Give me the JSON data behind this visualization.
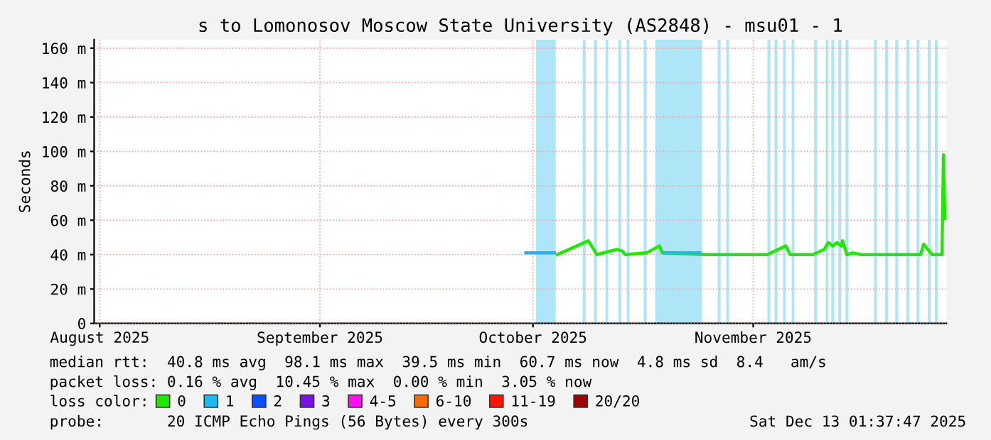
{
  "chart_data": {
    "type": "line",
    "title": "s to Lomonosov Moscow State University (AS2848) - msu01 - 1",
    "ylabel": "Seconds",
    "xlim": [
      "2025-07-31T05:00",
      "2025-11-28T05:00"
    ],
    "xticks": [
      {
        "value": "2025-08-01",
        "label": "August 2025"
      },
      {
        "value": "2025-09-01",
        "label": "September 2025"
      },
      {
        "value": "2025-10-01",
        "label": "October 2025"
      },
      {
        "value": "2025-11-01",
        "label": "November 2025"
      }
    ],
    "ylim": [
      0,
      165
    ],
    "yticks": [
      0,
      {
        "value": 20,
        "label": "20 m"
      },
      {
        "value": 40,
        "label": "40 m"
      },
      {
        "value": 60,
        "label": "60 m"
      },
      {
        "value": 80,
        "label": "80 m"
      },
      {
        "value": 100,
        "label": "100 m"
      },
      {
        "value": 120,
        "label": "120 m"
      },
      {
        "value": 140,
        "label": "140 m"
      },
      {
        "value": 160,
        "label": "160 m"
      }
    ],
    "grid": true,
    "legend": "bottom",
    "legend_title": "loss color:",
    "series": [
      {
        "name": "0",
        "color": "#22e800",
        "x": [
          "2025-10-04T10:00",
          "2025-10-08T19:00",
          "2025-10-10",
          "2025-10-12T19:00",
          "2025-10-13T14:00",
          "2025-10-14",
          "2025-10-17",
          "2025-10-18T19:00",
          "2025-10-19T05:00",
          "2025-10-25T10:00",
          "2025-11-03",
          "2025-11-04",
          "2025-11-05T14:00",
          "2025-11-06T05:00",
          "2025-11-09T10:00",
          "2025-11-11",
          "2025-11-11T14:00",
          "2025-11-12T05:00",
          "2025-11-12T19:00",
          "2025-11-13T10:00",
          "2025-11-13T14:00",
          "2025-11-14T05:00",
          "2025-11-15",
          "2025-11-16T05:00",
          "2025-11-24T14:00",
          "2025-11-25",
          "2025-11-25T19:00",
          "2025-11-26T05:00",
          "2025-11-27T14:00",
          "2025-11-27T19:00",
          "2025-11-28"
        ],
        "values": [
          40,
          48,
          40,
          43,
          42,
          40,
          41,
          45,
          41,
          40,
          40,
          42,
          45,
          40,
          40,
          43,
          47,
          45,
          47,
          45,
          48,
          40,
          41,
          40,
          40,
          46,
          42,
          40,
          40,
          98,
          61
        ]
      },
      {
        "name": "1",
        "color": "#1eb8f0",
        "x": [
          "2025-09-30",
          "2025-10-04",
          "2025-10-11",
          "2025-10-19T12:00",
          "2025-10-24T12:00"
        ],
        "values": [
          41,
          41,
          null,
          41,
          41
        ]
      },
      {
        "name": "2",
        "color": "#0a50ff"
      },
      {
        "name": "3",
        "color": "#7a10e8"
      },
      {
        "name": "4-5",
        "color": "#ff10f0"
      },
      {
        "name": "6-10",
        "color": "#ff6a00"
      },
      {
        "name": "11-19",
        "color": "#ff1400"
      },
      {
        "name": "20/20",
        "color": "#a00000"
      }
    ],
    "bands": [
      {
        "axis": "x",
        "from": "2025-10-01T10:00",
        "to": "2025-10-04T05:00",
        "color": "#aee6f8"
      },
      {
        "axis": "x",
        "from": "2025-10-18T05:00",
        "to": "2025-10-24T19:00",
        "color": "#aee6f8"
      },
      {
        "axis": "x",
        "from": "2025-10-08",
        "to": "2025-10-08T10:00",
        "color": "#aee6f8"
      },
      {
        "axis": "x",
        "from": "2025-10-09T14:00",
        "to": "2025-10-10",
        "color": "#aee6f8"
      },
      {
        "axis": "x",
        "from": "2025-10-11T05:00",
        "to": "2025-10-11T14:00",
        "color": "#aee6f8"
      },
      {
        "axis": "x",
        "from": "2025-10-13",
        "to": "2025-10-13T10:00",
        "color": "#aee6f8"
      },
      {
        "axis": "x",
        "from": "2025-10-14T05:00",
        "to": "2025-10-14T14:00",
        "color": "#aee6f8"
      },
      {
        "axis": "x",
        "from": "2025-10-16T14:00",
        "to": "2025-10-17",
        "color": "#aee6f8"
      },
      {
        "axis": "x",
        "from": "2025-10-27",
        "to": "2025-10-27T10:00",
        "color": "#aee6f8"
      },
      {
        "axis": "x",
        "from": "2025-10-28T05:00",
        "to": "2025-10-28T14:00",
        "color": "#aee6f8"
      },
      {
        "axis": "x",
        "from": "2025-11-03",
        "to": "2025-11-03T10:00",
        "color": "#aee6f8"
      },
      {
        "axis": "x",
        "from": "2025-11-04",
        "to": "2025-11-04T10:00",
        "color": "#aee6f8"
      },
      {
        "axis": "x",
        "from": "2025-11-05T05:00",
        "to": "2025-11-05T14:00",
        "color": "#aee6f8"
      },
      {
        "axis": "x",
        "from": "2025-11-06T10:00",
        "to": "2025-11-06T19:00",
        "color": "#aee6f8"
      },
      {
        "axis": "x",
        "from": "2025-11-09T14:00",
        "to": "2025-11-10",
        "color": "#aee6f8"
      },
      {
        "axis": "x",
        "from": "2025-11-11T05:00",
        "to": "2025-11-11T14:00",
        "color": "#aee6f8"
      },
      {
        "axis": "x",
        "from": "2025-11-12",
        "to": "2025-11-12T10:00",
        "color": "#aee6f8"
      },
      {
        "axis": "x",
        "from": "2025-11-13",
        "to": "2025-11-13T10:00",
        "color": "#aee6f8"
      },
      {
        "axis": "x",
        "from": "2025-11-14",
        "to": "2025-11-14T10:00",
        "color": "#aee6f8"
      },
      {
        "axis": "x",
        "from": "2025-11-18",
        "to": "2025-11-18T10:00",
        "color": "#aee6f8"
      },
      {
        "axis": "x",
        "from": "2025-11-19T14:00",
        "to": "2025-11-20",
        "color": "#aee6f8"
      },
      {
        "axis": "x",
        "from": "2025-11-21",
        "to": "2025-11-21T10:00",
        "color": "#aee6f8"
      },
      {
        "axis": "x",
        "from": "2025-11-22T14:00",
        "to": "2025-11-23",
        "color": "#aee6f8"
      },
      {
        "axis": "x",
        "from": "2025-11-24",
        "to": "2025-11-24T10:00",
        "color": "#aee6f8"
      },
      {
        "axis": "x",
        "from": "2025-11-25T14:00",
        "to": "2025-11-26",
        "color": "#aee6f8"
      },
      {
        "axis": "x",
        "from": "2025-11-26T14:00",
        "to": "2025-11-27",
        "color": "#aee6f8"
      }
    ],
    "annotations": [
      "median rtt:  40.8 ms avg  98.1 ms max  39.5 ms min  60.7 ms now  4.8 ms sd  8.4   am/s",
      "packet loss: 0.16 % avg  10.45 % max  0.00 % min  3.05 % now",
      "probe:       20 ICMP Echo Pings (56 Bytes) every 300s",
      "Sat Dec 13 01:37:47 2025"
    ]
  }
}
